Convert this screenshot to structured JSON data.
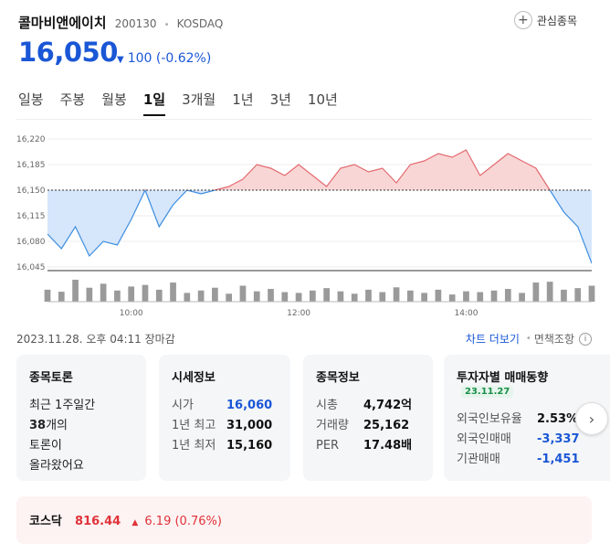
{
  "stock": {
    "name": "콜마비앤에이치",
    "code": "200130",
    "market": "KOSDAQ",
    "price": "16,050",
    "change_arrow": "▼",
    "change": "100 (-0.62%)",
    "favorite_label": "관심종목"
  },
  "tabs": [
    "일봉",
    "주봉",
    "월봉",
    "1일",
    "3개월",
    "1년",
    "3년",
    "10년"
  ],
  "active_tab": "1일",
  "chart_footer": {
    "date": "2023.11.28. 오후 04:11 장마감",
    "more_label": "차트 더보기",
    "disclaimer": "면책조항"
  },
  "chart_data": {
    "type": "area",
    "baseline": 16150,
    "ylim": [
      16040,
      16225
    ],
    "yticks": [
      "16,220",
      "16,185",
      "16,150",
      "16,115",
      "16,080",
      "16,045"
    ],
    "ytick_values": [
      16220,
      16185,
      16150,
      16115,
      16080,
      16045
    ],
    "xticks": [
      "10:00",
      "12:00",
      "14:00"
    ],
    "x": [
      "09:00",
      "09:10",
      "09:20",
      "09:30",
      "09:40",
      "09:50",
      "10:00",
      "10:10",
      "10:20",
      "10:30",
      "10:40",
      "10:50",
      "11:00",
      "11:10",
      "11:20",
      "11:30",
      "11:40",
      "11:50",
      "12:00",
      "12:10",
      "12:20",
      "12:30",
      "12:40",
      "12:50",
      "13:00",
      "13:10",
      "13:20",
      "13:30",
      "13:40",
      "13:50",
      "14:00",
      "14:10",
      "14:20",
      "14:30",
      "14:40",
      "14:50",
      "15:00",
      "15:10",
      "15:20",
      "15:30"
    ],
    "values": [
      16090,
      16070,
      16100,
      16060,
      16080,
      16075,
      16110,
      16150,
      16100,
      16130,
      16150,
      16145,
      16150,
      16155,
      16165,
      16185,
      16180,
      16170,
      16185,
      16170,
      16155,
      16180,
      16185,
      16175,
      16180,
      16160,
      16185,
      16190,
      16200,
      16195,
      16205,
      16170,
      16185,
      16200,
      16190,
      16180,
      16150,
      16120,
      16100,
      16050
    ],
    "volume": [
      30,
      25,
      55,
      35,
      45,
      28,
      38,
      42,
      30,
      48,
      22,
      28,
      35,
      20,
      40,
      26,
      32,
      24,
      22,
      28,
      34,
      26,
      20,
      30,
      24,
      36,
      28,
      22,
      30,
      18,
      26,
      24,
      28,
      32,
      22,
      48,
      50,
      30,
      34,
      40
    ]
  },
  "cards": {
    "forum": {
      "title": "종목토론",
      "line1": "최근 1주일간",
      "count": "38",
      "line2": "개의",
      "line3": "토론이",
      "line4": "올라왔어요"
    },
    "quote": {
      "title": "시세정보",
      "rows": [
        {
          "label": "시가",
          "value": "16,060"
        },
        {
          "label": "1년 최고",
          "value": "31,000"
        },
        {
          "label": "1년 최저",
          "value": "15,160"
        }
      ]
    },
    "stockinfo": {
      "title": "종목정보",
      "rows": [
        {
          "label": "시총",
          "value": "4,742억"
        },
        {
          "label": "거래량",
          "value": "25,162"
        },
        {
          "label": "PER",
          "value": "17.48배"
        }
      ]
    },
    "investor": {
      "title": "투자자별 매매동향",
      "badge": "23.11.27",
      "rows": [
        {
          "label": "외국인보유율",
          "value": "2.53%"
        },
        {
          "label": "외국인매매",
          "value": "-3,337"
        },
        {
          "label": "기관매매",
          "value": "-1,451"
        }
      ]
    }
  },
  "kosdaq": {
    "name": "코스닥",
    "value": "816.44",
    "arrow": "▲",
    "change": "6.19 (0.76%)"
  },
  "colors": {
    "blue": "#1a57d6",
    "red": "#e0323a",
    "up_fill": "#f9d6d6",
    "down_fill": "#d6e6fb"
  }
}
